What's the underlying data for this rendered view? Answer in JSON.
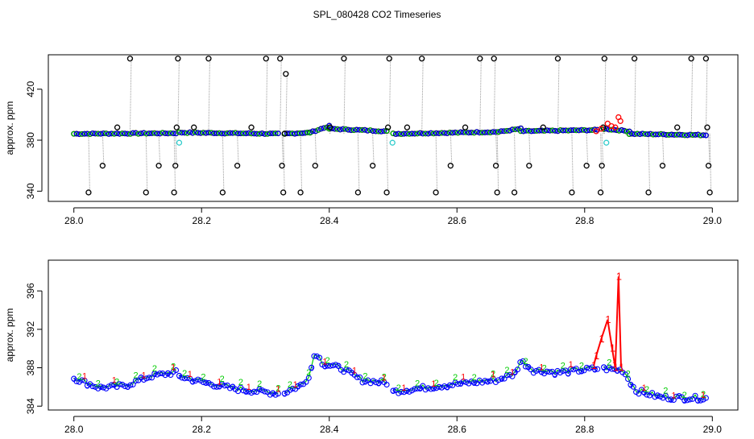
{
  "chart_data": [
    {
      "type": "scatter",
      "title": "SPL_080428  CO2 Timeseries",
      "xlabel": "",
      "ylabel": "approx. ppm",
      "xlim": [
        27.96,
        29.04
      ],
      "ylim": [
        332,
        447
      ],
      "x_ticks": [
        "28.0",
        "28.2",
        "28.4",
        "28.6",
        "28.8",
        "29.0"
      ],
      "y_ticks": [
        "340",
        "380",
        "420"
      ],
      "x_tick_values": [
        28.0,
        28.2,
        28.4,
        28.6,
        28.8,
        29.0
      ],
      "y_tick_values": [
        340,
        380,
        420
      ],
      "baseline_ppm": 385,
      "baseline_segments": [
        {
          "x": [
            28.0,
            28.16
          ],
          "y": [
            385,
            385.5
          ]
        },
        {
          "x": [
            28.165,
            28.32
          ],
          "y": [
            386,
            385
          ]
        },
        {
          "x": [
            28.33,
            28.37
          ],
          "y": [
            385,
            386
          ]
        },
        {
          "x": [
            28.37,
            28.4
          ],
          "y": [
            386,
            391
          ]
        },
        {
          "x": [
            28.4,
            28.49
          ],
          "y": [
            389,
            387
          ]
        },
        {
          "x": [
            28.5,
            28.665
          ],
          "y": [
            385,
            386.5
          ]
        },
        {
          "x": [
            28.665,
            28.7
          ],
          "y": [
            386.5,
            389
          ]
        },
        {
          "x": [
            28.7,
            28.82
          ],
          "y": [
            387,
            388
          ]
        },
        {
          "x": [
            28.83,
            28.87
          ],
          "y": [
            389,
            387
          ]
        },
        {
          "x": [
            28.87,
            28.99
          ],
          "y": [
            385,
            384
          ]
        }
      ],
      "spikes": [
        {
          "x": 28.023,
          "y": 339
        },
        {
          "x": 28.045,
          "y": 360
        },
        {
          "x": 28.068,
          "y": 390
        },
        {
          "x": 28.088,
          "y": 444
        },
        {
          "x": 28.113,
          "y": 339
        },
        {
          "x": 28.133,
          "y": 360
        },
        {
          "x": 28.157,
          "y": 339
        },
        {
          "x": 28.159,
          "y": 360
        },
        {
          "x": 28.161,
          "y": 390
        },
        {
          "x": 28.163,
          "y": 444
        },
        {
          "x": 28.188,
          "y": 390
        },
        {
          "x": 28.211,
          "y": 444
        },
        {
          "x": 28.233,
          "y": 339
        },
        {
          "x": 28.256,
          "y": 360
        },
        {
          "x": 28.278,
          "y": 390
        },
        {
          "x": 28.301,
          "y": 444
        },
        {
          "x": 28.323,
          "y": 444
        },
        {
          "x": 28.326,
          "y": 360
        },
        {
          "x": 28.328,
          "y": 339
        },
        {
          "x": 28.33,
          "y": 385
        },
        {
          "x": 28.332,
          "y": 432
        },
        {
          "x": 28.355,
          "y": 339
        },
        {
          "x": 28.378,
          "y": 360
        },
        {
          "x": 28.401,
          "y": 390
        },
        {
          "x": 28.423,
          "y": 444
        },
        {
          "x": 28.445,
          "y": 339
        },
        {
          "x": 28.468,
          "y": 360
        },
        {
          "x": 28.49,
          "y": 339
        },
        {
          "x": 28.492,
          "y": 390
        },
        {
          "x": 28.494,
          "y": 444
        },
        {
          "x": 28.522,
          "y": 390
        },
        {
          "x": 28.545,
          "y": 444
        },
        {
          "x": 28.567,
          "y": 339
        },
        {
          "x": 28.59,
          "y": 360
        },
        {
          "x": 28.613,
          "y": 390
        },
        {
          "x": 28.636,
          "y": 444
        },
        {
          "x": 28.658,
          "y": 444
        },
        {
          "x": 28.661,
          "y": 360
        },
        {
          "x": 28.663,
          "y": 339
        },
        {
          "x": 28.69,
          "y": 339
        },
        {
          "x": 28.713,
          "y": 360
        },
        {
          "x": 28.735,
          "y": 390
        },
        {
          "x": 28.758,
          "y": 444
        },
        {
          "x": 28.78,
          "y": 339
        },
        {
          "x": 28.803,
          "y": 360
        },
        {
          "x": 28.825,
          "y": 339
        },
        {
          "x": 28.827,
          "y": 360
        },
        {
          "x": 28.829,
          "y": 390
        },
        {
          "x": 28.831,
          "y": 444
        },
        {
          "x": 28.878,
          "y": 444
        },
        {
          "x": 28.9,
          "y": 339
        },
        {
          "x": 28.922,
          "y": 360
        },
        {
          "x": 28.945,
          "y": 390
        },
        {
          "x": 28.967,
          "y": 444
        },
        {
          "x": 28.99,
          "y": 444
        },
        {
          "x": 28.992,
          "y": 390
        },
        {
          "x": 28.994,
          "y": 360
        },
        {
          "x": 28.996,
          "y": 339
        }
      ],
      "cyan_points": [
        {
          "x": 28.165,
          "y": 378
        },
        {
          "x": 28.499,
          "y": 378
        },
        {
          "x": 28.834,
          "y": 378
        }
      ],
      "red_points": [
        {
          "x": 28.818,
          "y": 387
        },
        {
          "x": 28.826,
          "y": 389
        },
        {
          "x": 28.836,
          "y": 393
        },
        {
          "x": 28.842,
          "y": 391
        },
        {
          "x": 28.848,
          "y": 390
        },
        {
          "x": 28.853,
          "y": 398
        },
        {
          "x": 28.856,
          "y": 395
        }
      ]
    },
    {
      "type": "line",
      "title": "",
      "xlabel": "",
      "ylabel": "approx. ppm",
      "xlim": [
        27.96,
        29.04
      ],
      "ylim": [
        383.6,
        399.2
      ],
      "x_ticks": [
        "28.0",
        "28.2",
        "28.4",
        "28.6",
        "28.8",
        "29.0"
      ],
      "y_ticks": [
        "384",
        "388",
        "392",
        "396"
      ],
      "x_tick_values": [
        28.0,
        28.2,
        28.4,
        28.6,
        28.8,
        29.0
      ],
      "y_tick_values": [
        384,
        388,
        392,
        396
      ],
      "segments": [
        {
          "x": [
            28.0,
            28.04,
            28.08,
            28.12,
            28.16
          ],
          "y": [
            387.0,
            386.0,
            386.2,
            387.2,
            387.6
          ]
        },
        {
          "x": [
            28.165,
            28.2,
            28.25,
            28.32
          ],
          "y": [
            387.2,
            386.6,
            385.9,
            385.4
          ]
        },
        {
          "x": [
            28.33,
            28.36,
            28.37,
            28.378,
            28.39,
            28.42,
            28.45,
            28.49
          ],
          "y": [
            385.5,
            386.4,
            387.5,
            389.8,
            388.5,
            388.0,
            386.8,
            386.5
          ]
        },
        {
          "x": [
            28.5,
            28.55,
            28.6,
            28.665
          ],
          "y": [
            385.6,
            386.0,
            386.4,
            386.8
          ]
        },
        {
          "x": [
            28.67,
            28.69,
            28.7,
            28.72,
            28.76,
            28.82
          ],
          "y": [
            387.0,
            387.4,
            388.8,
            387.8,
            387.6,
            388.0
          ]
        },
        {
          "x": [
            28.83,
            28.86,
            28.88,
            28.92,
            28.99
          ],
          "y": [
            388.0,
            387.8,
            385.7,
            385.0,
            384.9
          ]
        }
      ],
      "red_line": {
        "x": [
          28.814,
          28.818,
          28.826,
          28.836,
          28.843,
          28.848,
          28.853,
          28.857
        ],
        "y": [
          388.2,
          389.2,
          391.0,
          393.0,
          390.0,
          388.0,
          397.5,
          388.0
        ],
        "label": "1"
      },
      "label_digits": [
        "1",
        "2",
        "3"
      ],
      "colors": {
        "1": "#ff0000",
        "2": "#00cc00",
        "3": "#0000ff"
      }
    }
  ],
  "colors": {
    "frame": "#000000",
    "spike_line": "#999999",
    "black_circle": "#000000",
    "blue_circle": "#0000ff",
    "green_circle": "#00cc00",
    "cyan_circle": "#33cccc",
    "red_circle": "#ff0000"
  }
}
